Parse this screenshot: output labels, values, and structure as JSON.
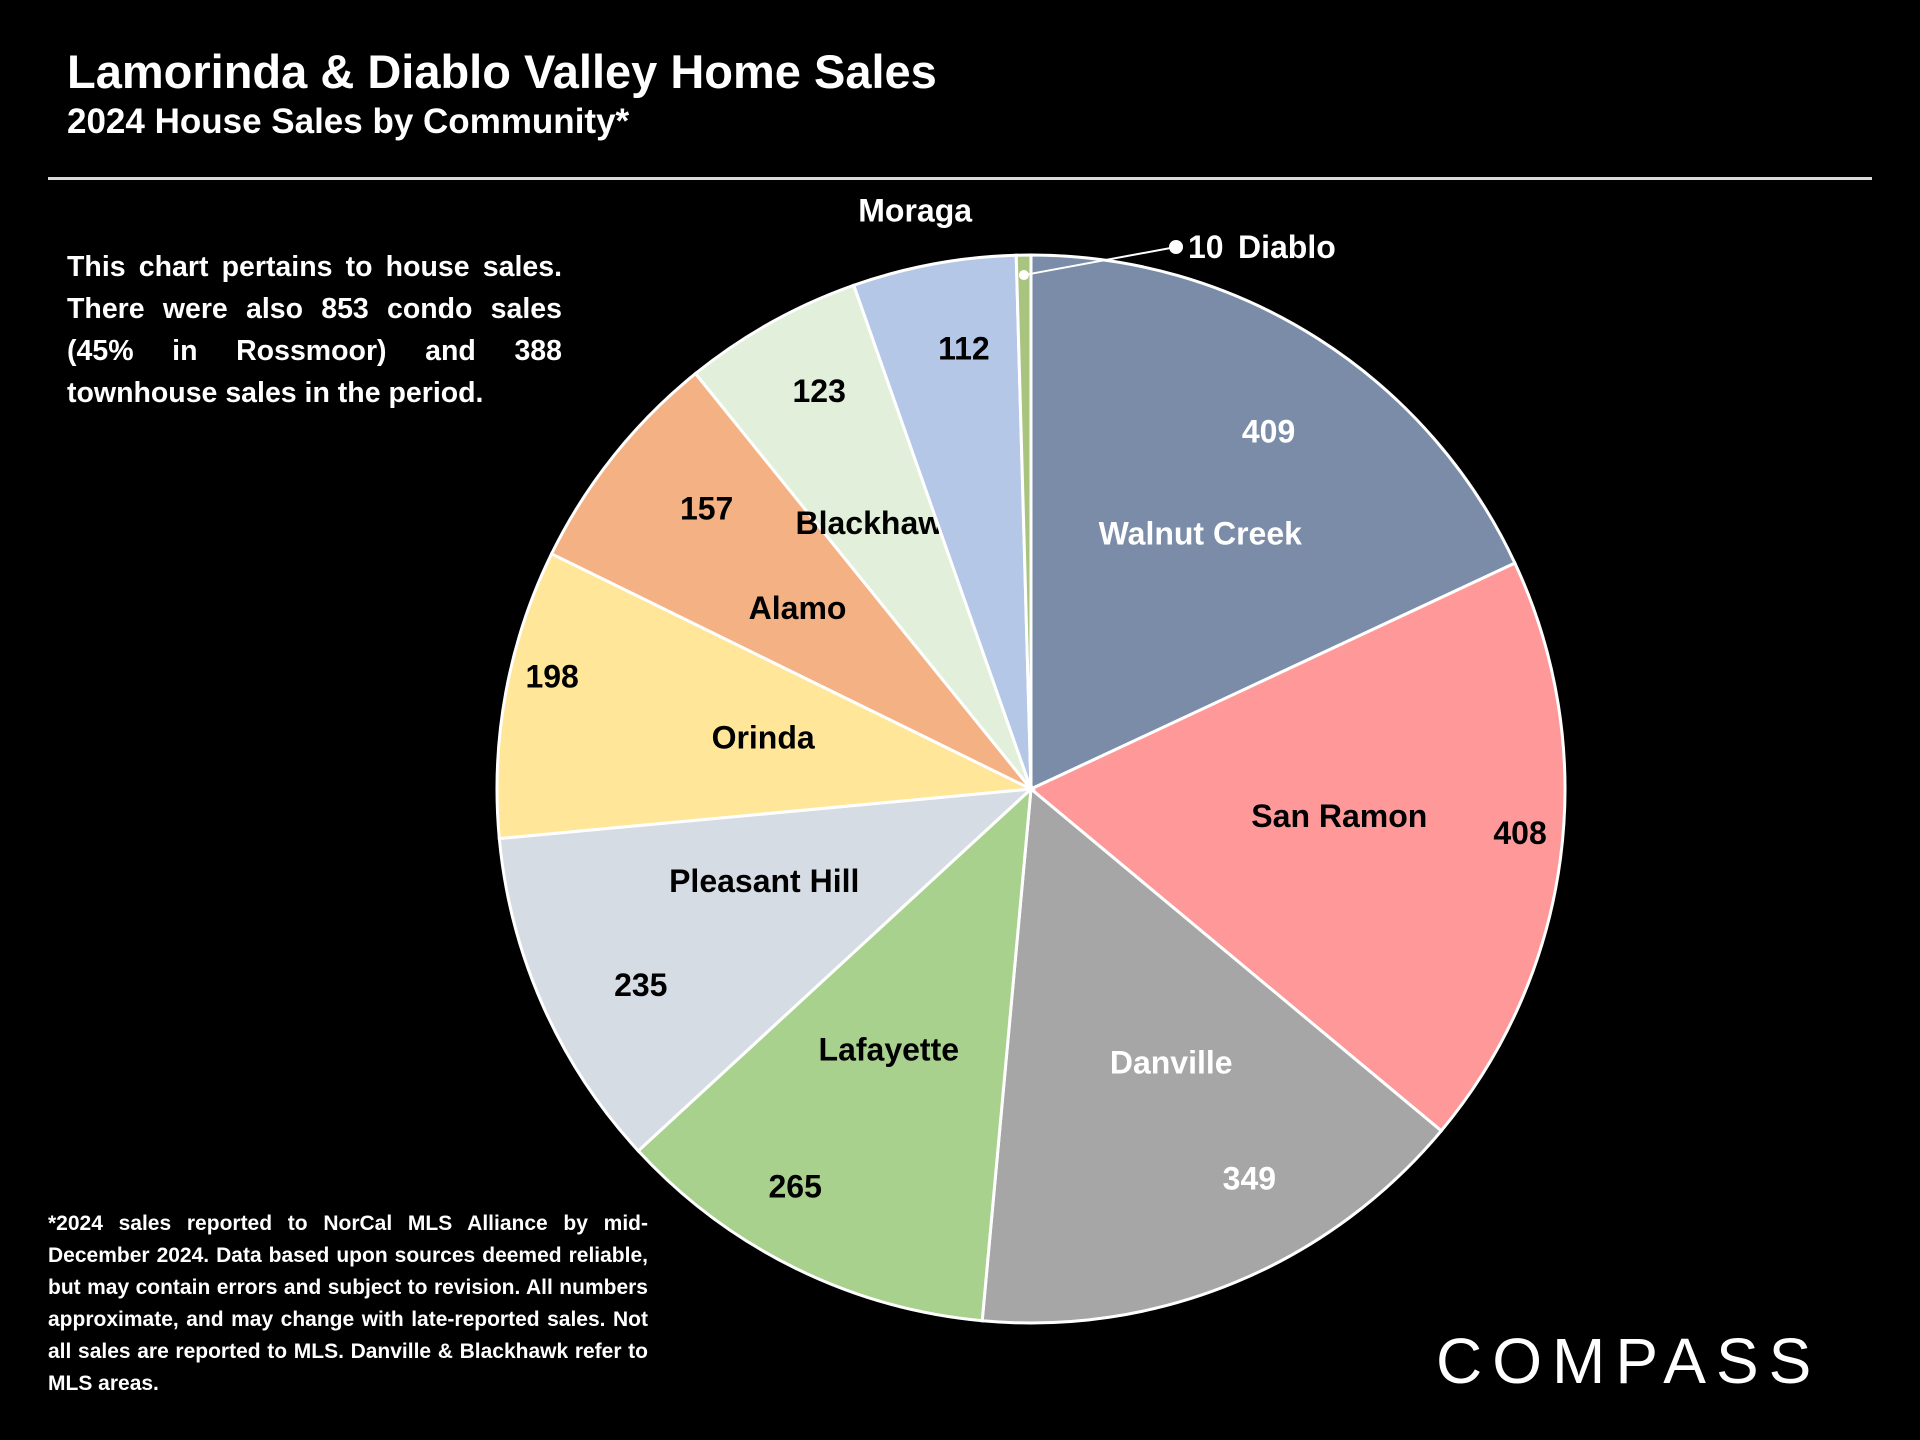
{
  "header": {
    "title": "Lamorinda & Diablo Valley Home Sales",
    "subtitle": "2024 House Sales by Community*"
  },
  "note": "This chart pertains to house sales. There were also 853 condo sales (45% in Rossmoor) and 388 townhouse sales in the period.",
  "footnote": "*2024 sales reported to NorCal MLS Alliance by mid-December 2024. Data based upon sources deemed reliable, but may contain errors and subject to revision. All numbers approximate, and may change with late-reported sales. Not all sales are reported to MLS. Danville & Blackhawk refer to MLS areas.",
  "logo": "COMPASS",
  "chart_data": {
    "type": "pie",
    "title": "Lamorinda & Diablo Valley Home Sales",
    "subtitle": "2024 House Sales by Community*",
    "start": "12 o'clock, clockwise",
    "slices": [
      {
        "label": "Walnut Creek",
        "value": 409,
        "color": "#7a8ca8",
        "text_color": "#ffffff"
      },
      {
        "label": "San Ramon",
        "value": 408,
        "color": "#ff9999",
        "text_color": "#000000"
      },
      {
        "label": "Danville",
        "value": 349,
        "color": "#a6a6a6",
        "text_color": "#ffffff"
      },
      {
        "label": "Lafayette",
        "value": 265,
        "color": "#a9d18e",
        "text_color": "#000000"
      },
      {
        "label": "Pleasant Hill",
        "value": 235,
        "color": "#d6dce4",
        "text_color": "#000000"
      },
      {
        "label": "Orinda",
        "value": 198,
        "color": "#ffe699",
        "text_color": "#000000"
      },
      {
        "label": "Alamo",
        "value": 157,
        "color": "#f4b183",
        "text_color": "#000000"
      },
      {
        "label": "Blackhawk",
        "value": 123,
        "color": "#e2efda",
        "text_color": "#000000"
      },
      {
        "label": "Moraga",
        "value": 112,
        "color": "#b4c7e7",
        "text_color": "#000000"
      },
      {
        "label": "Diablo",
        "value": 10,
        "color": "#a9c47f",
        "text_color": "#ffffff"
      }
    ],
    "slice_border_color": "#ffffff"
  }
}
